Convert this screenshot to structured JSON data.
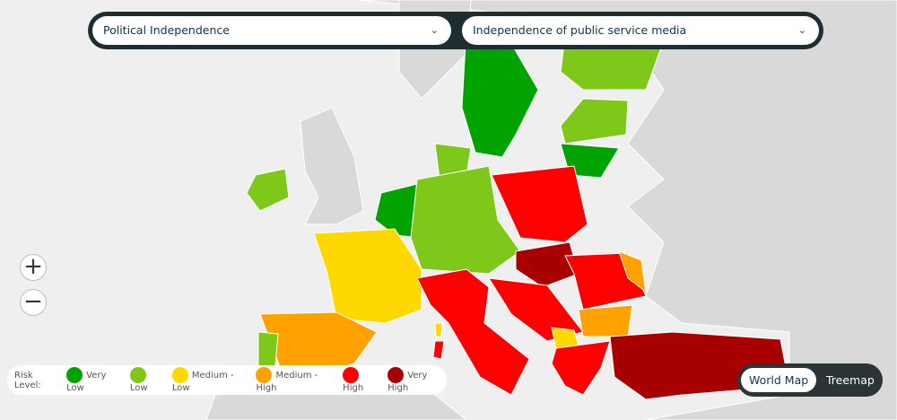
{
  "filters": [
    "Political Independence",
    "Independence of public service media"
  ],
  "legend": {
    "title": "Risk Level:",
    "items": [
      {
        "label": "Very Low",
        "color": "#00a300"
      },
      {
        "label": "Low",
        "color": "#7ec81a"
      },
      {
        "label": "Medium - Low",
        "color": "#ffd800"
      },
      {
        "label": "Medium - High",
        "color": "#ffa200"
      },
      {
        "label": "High",
        "color": "#ff0000"
      },
      {
        "label": "Very High",
        "color": "#a80000"
      }
    ]
  },
  "view_toggle": {
    "options": [
      "World Map",
      "Treemap"
    ],
    "active": 0
  }
}
